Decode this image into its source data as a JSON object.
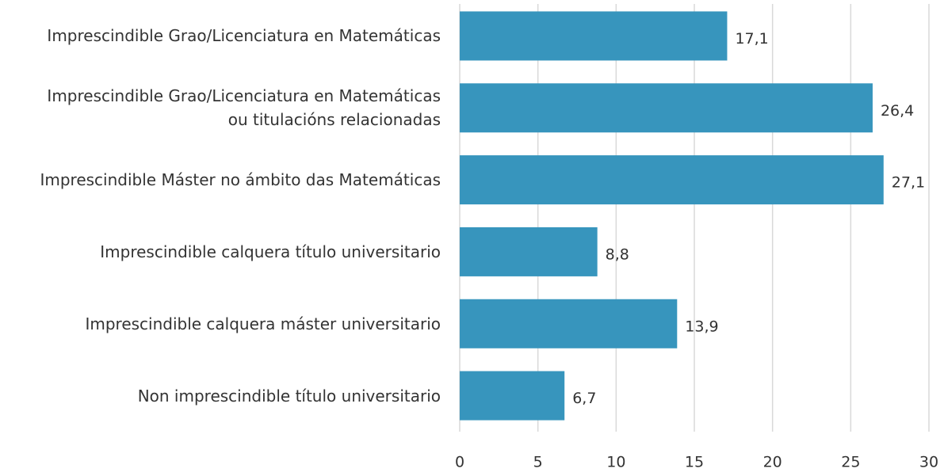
{
  "chart_data": {
    "type": "bar",
    "orientation": "horizontal",
    "categories": [
      "Imprescindible Grao/Licenciatura en Matemáticas",
      "Imprescindible Grao/Licenciatura en Matemáticas\nou titulacións relacionadas",
      "Imprescindible Máster no ámbito das Matemáticas",
      "Imprescindible calquera título universitario",
      "Imprescindible calquera máster universitario",
      "Non imprescindible título universitario"
    ],
    "values": [
      17.1,
      26.4,
      27.1,
      8.8,
      13.9,
      6.7
    ],
    "value_labels": [
      "17,1",
      "26,4",
      "27,1",
      "8,8",
      "13,9",
      "6,7"
    ],
    "color": "#3795bd",
    "xlim": [
      0,
      30
    ],
    "xticks": [
      0,
      5,
      10,
      15,
      20,
      25,
      30
    ],
    "grid": true
  }
}
